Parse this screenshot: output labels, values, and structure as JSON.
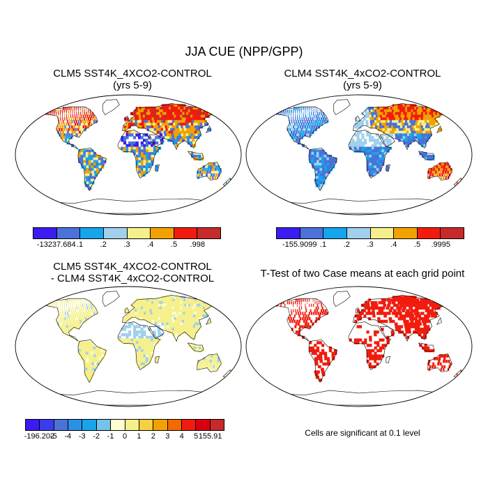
{
  "title": "JJA CUE (NPP/GPP)",
  "panels": [
    {
      "id": "clm5",
      "title_line1": "CLM5 SST4K_4XCO2-CONTROL",
      "title_line2": "(yrs 5-9)",
      "palette": [
        "#3a1cf0",
        "#4a72d9",
        "#16a5ea",
        "#a0d0ec",
        "#f6f08c",
        "#f2a200",
        "#f21c0e",
        "#c62a2a"
      ],
      "labels": [
        "-13237.684",
        ".1",
        ".2",
        ".3",
        ".4",
        ".5",
        ".998"
      ]
    },
    {
      "id": "clm4",
      "title_line1": "CLM4 SST4K_4xCO2-CONTROL",
      "title_line2": "(yrs 5-9)",
      "palette": [
        "#3a1cf0",
        "#4a72d9",
        "#16a5ea",
        "#a0d0ec",
        "#f6f08c",
        "#f2a200",
        "#f21c0e",
        "#c62a2a"
      ],
      "labels": [
        "-155.9099",
        ".1",
        ".2",
        ".3",
        ".4",
        ".5",
        ".9995"
      ]
    },
    {
      "id": "diff",
      "title_line1": "CLM5 SST4K_4XCO2-CONTROL",
      "title_line2": "- CLM4 SST4K_4xCO2-CONTROL",
      "palette": [
        "#3a1cf0",
        "#3a3cea",
        "#4a72d9",
        "#2c8fe6",
        "#16a5ea",
        "#74c3ec",
        "#fdfdd0",
        "#f6f08c",
        "#f6d040",
        "#f2a200",
        "#f26a00",
        "#f21c0e",
        "#d80010",
        "#c62a2a"
      ],
      "labels": [
        "-196.202",
        "-5",
        "-4",
        "-3",
        "-2",
        "-1",
        "0",
        "1",
        "2",
        "3",
        "4",
        "5",
        "155.91"
      ]
    },
    {
      "id": "ttest",
      "title_line1": "T-Test of two Case means at each grid point",
      "note": "Cells are significant at 0.1 level"
    }
  ]
}
